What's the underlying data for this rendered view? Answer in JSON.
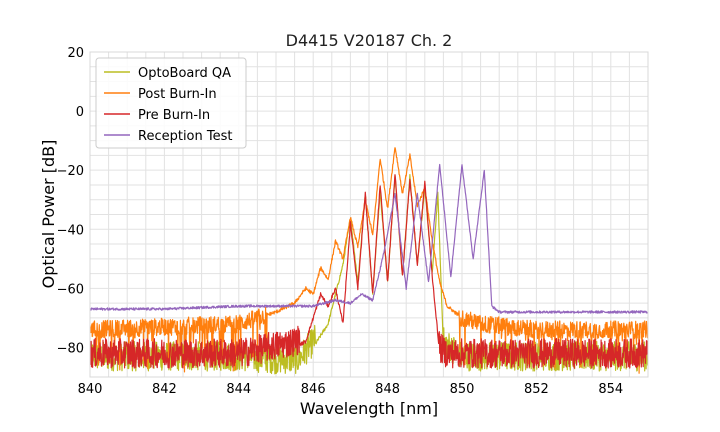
{
  "chart_data": {
    "type": "line",
    "title": "D4415 V20187 Ch. 2",
    "xlabel": "Wavelength [nm]",
    "ylabel": "Optical Power [dB]",
    "xlim": [
      840,
      855
    ],
    "ylim": [
      -90,
      20
    ],
    "xticks": [
      840,
      842,
      844,
      846,
      848,
      850,
      852,
      854
    ],
    "yticks": [
      20,
      0,
      -20,
      -40,
      -60,
      -80
    ],
    "xtick_labels": [
      "840",
      "842",
      "844",
      "846",
      "848",
      "850",
      "852",
      "854"
    ],
    "ytick_labels": [
      "20",
      "0",
      "−20",
      "−40",
      "−60",
      "−80"
    ],
    "grid": true,
    "legend_position": "top-left",
    "series": [
      {
        "name": "OptoBoard QA",
        "color": "#bcbd22",
        "floor": "noisy-low",
        "x": [
          840,
          841,
          842,
          843,
          844,
          845,
          845.6,
          846,
          846.4,
          846.8,
          847.0,
          847.2,
          847.4,
          847.6,
          847.8,
          848.0,
          848.2,
          848.4,
          848.6,
          848.8,
          849.0,
          849.2,
          849.35,
          849.5,
          850,
          852,
          855
        ],
        "values": [
          -85,
          -85,
          -85,
          -85,
          -85,
          -86,
          -86,
          -80,
          -72,
          -52,
          -36,
          -58,
          -28,
          -62,
          -27,
          -58,
          -22,
          -56,
          -22,
          -52,
          -26,
          -55,
          -28,
          -80,
          -85,
          -85,
          -85
        ]
      },
      {
        "name": "Post Burn-In",
        "color": "#ff7f0e",
        "floor": "noisy-mid",
        "x": [
          840,
          842,
          844,
          845,
          845.5,
          845.8,
          846.0,
          846.2,
          846.4,
          846.6,
          846.8,
          847.0,
          847.2,
          847.4,
          847.6,
          847.8,
          848.0,
          848.2,
          848.4,
          848.6,
          848.8,
          849.0,
          849.2,
          849.4,
          849.6,
          850,
          850.5,
          852,
          855
        ],
        "values": [
          -74,
          -73,
          -72,
          -68,
          -65,
          -60,
          -62,
          -53,
          -57,
          -44,
          -50,
          -36,
          -46,
          -30,
          -42,
          -16,
          -33,
          -12,
          -28,
          -15,
          -32,
          -26,
          -44,
          -58,
          -66,
          -70,
          -72,
          -74,
          -74
        ]
      },
      {
        "name": "Pre Burn-In",
        "color": "#d62728",
        "floor": "noisy-low",
        "x": [
          840,
          842,
          844,
          845.5,
          845.8,
          846.0,
          846.2,
          846.4,
          846.6,
          846.8,
          847.0,
          847.2,
          847.4,
          847.6,
          847.8,
          848.0,
          848.2,
          848.4,
          848.6,
          848.8,
          849.0,
          849.2,
          849.4,
          849.6,
          850,
          852,
          855
        ],
        "values": [
          -84,
          -84,
          -84,
          -80,
          -78,
          -70,
          -62,
          -66,
          -60,
          -72,
          -38,
          -60,
          -28,
          -62,
          -25,
          -58,
          -21,
          -56,
          -23,
          -52,
          -24,
          -56,
          -82,
          -84,
          -84,
          -84,
          -84
        ]
      },
      {
        "name": "Reception Test",
        "color": "#9467bd",
        "floor": "smooth",
        "x": [
          840,
          842,
          844,
          845,
          846,
          846.6,
          847.0,
          847.3,
          847.6,
          847.9,
          848.2,
          848.5,
          848.8,
          849.1,
          849.4,
          849.7,
          850.0,
          850.3,
          850.6,
          850.8,
          851,
          852,
          853,
          854,
          855
        ],
        "values": [
          -67,
          -67,
          -66,
          -66,
          -66,
          -64,
          -65,
          -62,
          -64,
          -48,
          -28,
          -60,
          -28,
          -58,
          -18,
          -56,
          -18,
          -50,
          -20,
          -66,
          -68,
          -68,
          -68,
          -68,
          -68
        ]
      }
    ]
  }
}
